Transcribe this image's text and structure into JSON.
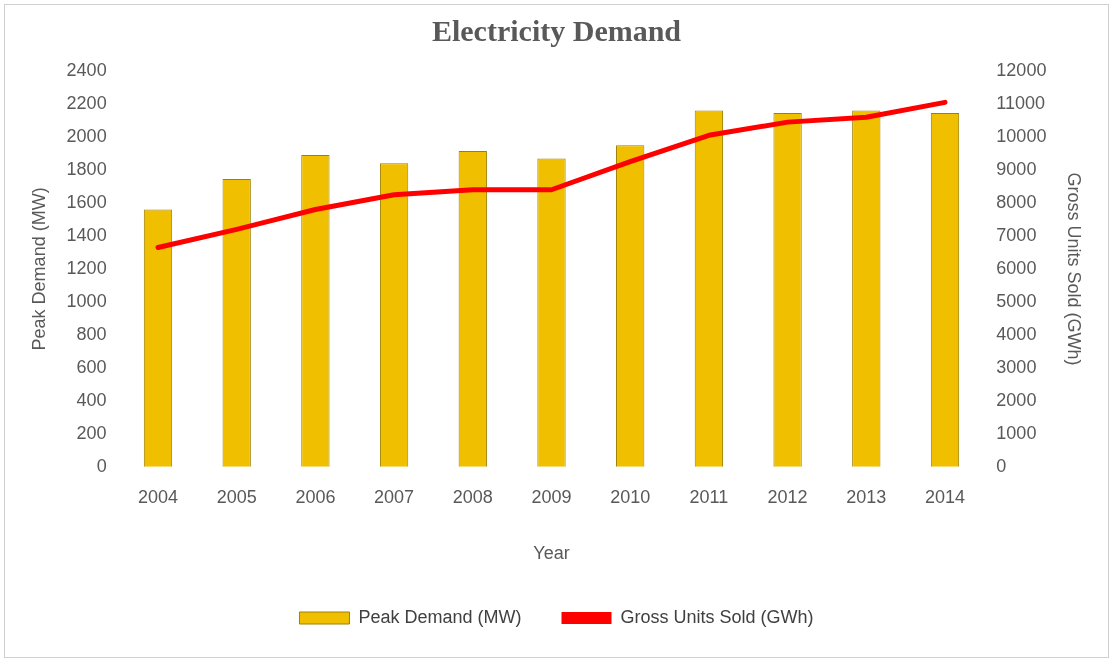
{
  "chart_data": {
    "type": "bar",
    "title": "Electricity Demand",
    "xlabel": "Year",
    "ylabel": "Peak Demand (MW)",
    "y2label": "Gross Units Sold (GWh)",
    "categories": [
      "2004",
      "2005",
      "2006",
      "2007",
      "2008",
      "2009",
      "2010",
      "2011",
      "2012",
      "2013",
      "2014"
    ],
    "series": [
      {
        "name": "Peak Demand (MW)",
        "color": "#f0c000",
        "values": [
          1560,
          1745,
          1890,
          1840,
          1915,
          1870,
          1950,
          2160,
          2145,
          2160,
          2145
        ]
      },
      {
        "name": "Gross Units Sold (GWh)",
        "type": "line",
        "axis": "y2",
        "color": "#ff0000",
        "values": [
          6650,
          7200,
          7800,
          8250,
          8400,
          8400,
          9250,
          10050,
          10450,
          10600,
          11050
        ]
      }
    ],
    "ylim": [
      0,
      2400
    ],
    "yticks": [
      0,
      200,
      400,
      600,
      800,
      1000,
      1200,
      1400,
      1600,
      1800,
      2000,
      2200,
      2400
    ],
    "y2lim": [
      0,
      12000
    ],
    "y2ticks": [
      0,
      1000,
      2000,
      3000,
      4000,
      5000,
      6000,
      7000,
      8000,
      9000,
      10000,
      11000,
      12000
    ],
    "grid": false,
    "legend": "bottom",
    "marker": "none",
    "line_style": "solid"
  }
}
